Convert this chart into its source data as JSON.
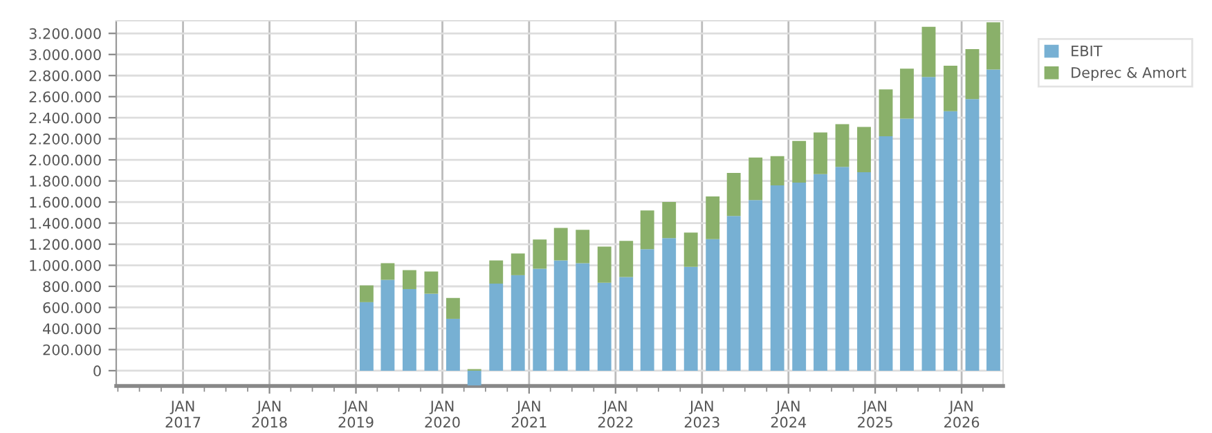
{
  "chart_data": {
    "type": "bar",
    "stacked": true,
    "legend": "top right",
    "grid": true,
    "x": [
      "2019-02-15",
      "2019-05-15",
      "2019-08-15",
      "2019-11-15",
      "2020-02-15",
      "2020-05-15",
      "2020-08-15",
      "2020-11-15",
      "2021-02-15",
      "2021-05-15",
      "2021-08-15",
      "2021-11-15",
      "2022-02-15",
      "2022-05-15",
      "2022-08-15",
      "2022-11-15",
      "2023-02-15",
      "2023-05-15",
      "2023-08-15",
      "2023-11-15",
      "2024-02-15",
      "2024-05-15",
      "2024-08-15",
      "2024-11-15",
      "2025-02-15",
      "2025-05-15",
      "2025-08-15",
      "2025-11-15",
      "2026-02-15",
      "2026-05-15"
    ],
    "series": [
      {
        "name": "EBIT",
        "color": "#77b0d3",
        "values": [
          650000,
          862000,
          774000,
          730000,
          492000,
          -140000,
          826000,
          906000,
          967000,
          1046000,
          1020000,
          835000,
          888000,
          1152000,
          1257000,
          985000,
          1248000,
          1468000,
          1618000,
          1758000,
          1785000,
          1864000,
          1934000,
          1882000,
          2224000,
          2391000,
          2787000,
          2462000,
          2576000,
          2857000
        ]
      },
      {
        "name": "Deprec & Amort",
        "color": "#8ab06a",
        "values": [
          159000,
          158000,
          180000,
          211000,
          198000,
          15000,
          220000,
          206000,
          277000,
          308000,
          316000,
          343000,
          343000,
          369000,
          343000,
          325000,
          405000,
          409000,
          404000,
          277000,
          395000,
          396000,
          405000,
          430000,
          444000,
          475000,
          475000,
          431000,
          475000,
          449000
        ]
      }
    ],
    "xlim": [
      "2016-03-25",
      "2026-06-25"
    ],
    "xticks": [
      {
        "value": "2017-01-01",
        "label": "JAN\n2017"
      },
      {
        "value": "2018-01-01",
        "label": "JAN\n2018"
      },
      {
        "value": "2019-01-01",
        "label": "JAN\n2019"
      },
      {
        "value": "2020-01-01",
        "label": "JAN\n2020"
      },
      {
        "value": "2021-01-01",
        "label": "JAN\n2021"
      },
      {
        "value": "2022-01-01",
        "label": "JAN\n2022"
      },
      {
        "value": "2023-01-01",
        "label": "JAN\n2023"
      },
      {
        "value": "2024-01-01",
        "label": "JAN\n2024"
      },
      {
        "value": "2025-01-01",
        "label": "JAN\n2025"
      },
      {
        "value": "2026-01-01",
        "label": "JAN\n2026"
      },
      {
        "value": "2016-04-01",
        "label": null
      },
      {
        "value": "2016-07-01",
        "label": null
      },
      {
        "value": "2016-10-01",
        "label": null
      },
      {
        "value": "2017-04-01",
        "label": null
      },
      {
        "value": "2017-07-01",
        "label": null
      },
      {
        "value": "2017-10-01",
        "label": null
      },
      {
        "value": "2018-04-01",
        "label": null
      },
      {
        "value": "2018-07-01",
        "label": null
      },
      {
        "value": "2018-10-01",
        "label": null
      },
      {
        "value": "2019-04-01",
        "label": null
      },
      {
        "value": "2019-07-01",
        "label": null
      },
      {
        "value": "2019-10-01",
        "label": null
      },
      {
        "value": "2020-04-01",
        "label": null
      },
      {
        "value": "2020-07-01",
        "label": null
      },
      {
        "value": "2020-10-01",
        "label": null
      },
      {
        "value": "2021-04-01",
        "label": null
      },
      {
        "value": "2021-07-01",
        "label": null
      },
      {
        "value": "2021-10-01",
        "label": null
      },
      {
        "value": "2022-04-01",
        "label": null
      },
      {
        "value": "2022-07-01",
        "label": null
      },
      {
        "value": "2022-10-01",
        "label": null
      },
      {
        "value": "2023-04-01",
        "label": null
      },
      {
        "value": "2023-07-01",
        "label": null
      },
      {
        "value": "2023-10-01",
        "label": null
      },
      {
        "value": "2024-04-01",
        "label": null
      },
      {
        "value": "2024-07-01",
        "label": null
      },
      {
        "value": "2024-10-01",
        "label": null
      },
      {
        "value": "2025-04-01",
        "label": null
      },
      {
        "value": "2025-07-01",
        "label": null
      },
      {
        "value": "2025-10-01",
        "label": null
      },
      {
        "value": "2026-04-01",
        "label": null
      }
    ],
    "ylim": [
      -145000,
      3320000
    ],
    "yticks": [
      0,
      {
        "value": 200000,
        "label": "200.000"
      },
      {
        "value": 400000,
        "label": "400.000"
      },
      {
        "value": 600000,
        "label": "600.000"
      },
      {
        "value": 800000,
        "label": "800.000"
      },
      {
        "value": 1000000,
        "label": "1.000.000"
      },
      {
        "value": 1200000,
        "label": "1.200.000"
      },
      {
        "value": 1400000,
        "label": "1.400.000"
      },
      {
        "value": 1600000,
        "label": "1.600.000"
      },
      {
        "value": 1800000,
        "label": "1.800.000"
      },
      {
        "value": 2000000,
        "label": "2.000.000"
      },
      {
        "value": 2200000,
        "label": "2.200.000"
      },
      {
        "value": 2400000,
        "label": "2.400.000"
      },
      {
        "value": 2600000,
        "label": "2.600.000"
      },
      {
        "value": 2800000,
        "label": "2.800.000"
      },
      {
        "value": 3000000,
        "label": "3.000.000"
      },
      {
        "value": 3200000,
        "label": "3.200.000"
      }
    ]
  }
}
